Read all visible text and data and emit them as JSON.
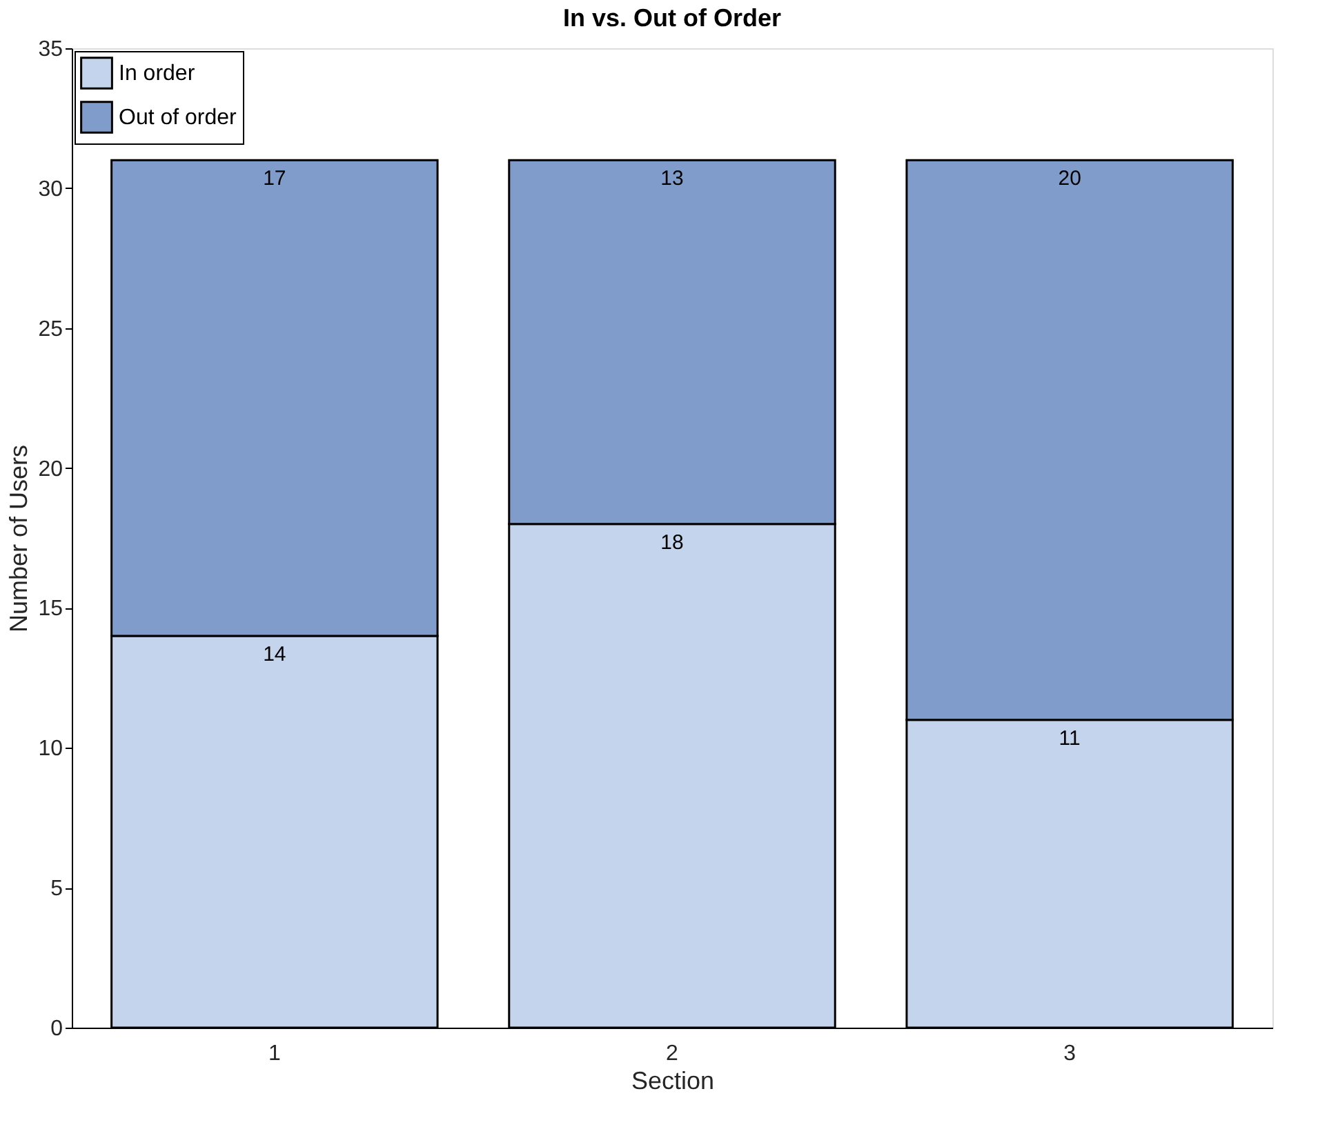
{
  "chart_data": {
    "type": "bar",
    "title": "In vs. Out of Order",
    "xlabel": "Section",
    "ylabel": "Number of Users",
    "categories": [
      "1",
      "2",
      "3"
    ],
    "series": [
      {
        "name": "In order",
        "color": "#c3d4ec",
        "values": [
          14,
          18,
          11
        ]
      },
      {
        "name": "Out of order",
        "color": "#7f9cca",
        "values": [
          17,
          13,
          20
        ]
      }
    ],
    "stacked": true,
    "ylim": [
      0,
      35
    ],
    "yticks": [
      0,
      5,
      10,
      15,
      20,
      25,
      30,
      35
    ],
    "grid": false,
    "legend": "top left",
    "data_labels": true
  }
}
